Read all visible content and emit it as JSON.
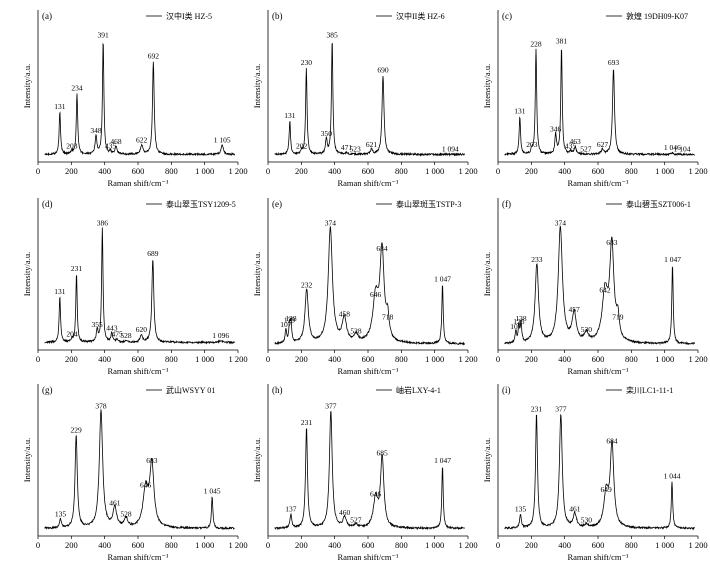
{
  "chart_data": [
    {
      "panel": "(a)",
      "type": "line",
      "legend": "汉中I类 HZ-5",
      "xlabel": "Raman shift/cm⁻¹",
      "ylabel": "Intensity/a.u.",
      "xlim": [
        0,
        1200
      ],
      "xticks": [
        "0",
        "200",
        "400",
        "600",
        "800",
        "1 000",
        "1 200"
      ],
      "baseline": 0.05,
      "peaks": [
        {
          "x": 131,
          "y": 0.33,
          "label": "131",
          "w": 5
        },
        {
          "x": 203,
          "y": 0.07,
          "label": "203",
          "w": 6
        },
        {
          "x": 234,
          "y": 0.45,
          "label": "234",
          "w": 5
        },
        {
          "x": 348,
          "y": 0.17,
          "label": "348",
          "w": 6
        },
        {
          "x": 391,
          "y": 0.8,
          "label": "391",
          "w": 5
        },
        {
          "x": 435,
          "y": 0.07,
          "label": "435",
          "w": 6
        },
        {
          "x": 468,
          "y": 0.1,
          "label": "468",
          "w": 7
        },
        {
          "x": 622,
          "y": 0.11,
          "label": "622",
          "w": 8
        },
        {
          "x": 692,
          "y": 0.66,
          "label": "692",
          "w": 6
        },
        {
          "x": 1105,
          "y": 0.11,
          "label": "1 105",
          "w": 8
        }
      ]
    },
    {
      "panel": "(b)",
      "type": "line",
      "legend": "汉中II类 HZ-6",
      "xlabel": "Raman shift/cm⁻¹",
      "ylabel": "Intensity/a.u.",
      "xlim": [
        0,
        1200
      ],
      "xticks": [
        "0",
        "200",
        "400",
        "600",
        "800",
        "1 000",
        "1 200"
      ],
      "baseline": 0.05,
      "peaks": [
        {
          "x": 131,
          "y": 0.27,
          "label": "131",
          "w": 5
        },
        {
          "x": 202,
          "y": 0.07,
          "label": "202",
          "w": 6
        },
        {
          "x": 230,
          "y": 0.62,
          "label": "230",
          "w": 5
        },
        {
          "x": 350,
          "y": 0.15,
          "label": "350",
          "w": 6
        },
        {
          "x": 385,
          "y": 0.8,
          "label": "385",
          "w": 5
        },
        {
          "x": 471,
          "y": 0.06,
          "label": "471",
          "w": 7
        },
        {
          "x": 523,
          "y": 0.05,
          "label": "523",
          "w": 7
        },
        {
          "x": 621,
          "y": 0.08,
          "label": "621",
          "w": 8
        },
        {
          "x": 690,
          "y": 0.57,
          "label": "690",
          "w": 7
        },
        {
          "x": 1094,
          "y": 0.05,
          "label": "1 094",
          "w": 10
        }
      ]
    },
    {
      "panel": "(c)",
      "type": "line",
      "legend": "敦煌 19DH09-K07",
      "xlabel": "Raman shift/cm⁻¹",
      "ylabel": "Intensity/a.u.",
      "xlim": [
        0,
        1200
      ],
      "xticks": [
        "0",
        "200",
        "400",
        "600",
        "800",
        "1 000",
        "1 200"
      ],
      "baseline": 0.05,
      "peaks": [
        {
          "x": 131,
          "y": 0.3,
          "label": "131",
          "w": 5
        },
        {
          "x": 203,
          "y": 0.08,
          "label": "203",
          "w": 6
        },
        {
          "x": 228,
          "y": 0.74,
          "label": "228",
          "w": 5
        },
        {
          "x": 346,
          "y": 0.18,
          "label": "346",
          "w": 6
        },
        {
          "x": 381,
          "y": 0.76,
          "label": "381",
          "w": 5
        },
        {
          "x": 435,
          "y": 0.07,
          "label": "435",
          "w": 6
        },
        {
          "x": 463,
          "y": 0.1,
          "label": "463",
          "w": 7
        },
        {
          "x": 527,
          "y": 0.05,
          "label": "527",
          "w": 7
        },
        {
          "x": 627,
          "y": 0.08,
          "label": "627",
          "w": 8
        },
        {
          "x": 693,
          "y": 0.62,
          "label": "693",
          "w": 7
        },
        {
          "x": 1046,
          "y": 0.06,
          "label": "1 046",
          "w": 6
        },
        {
          "x": 1104,
          "y": 0.05,
          "label": "1 104",
          "w": 8
        }
      ]
    },
    {
      "panel": "(d)",
      "type": "line",
      "legend": "泰山翠玉TSY1209-5",
      "xlabel": "Raman shift/cm⁻¹",
      "ylabel": "Intensity/a.u.",
      "xlim": [
        0,
        1200
      ],
      "xticks": [
        "0",
        "200",
        "400",
        "600",
        "800",
        "1 000",
        "1 200"
      ],
      "baseline": 0.05,
      "peaks": [
        {
          "x": 131,
          "y": 0.35,
          "label": "131",
          "w": 5
        },
        {
          "x": 204,
          "y": 0.07,
          "label": "204",
          "w": 6
        },
        {
          "x": 231,
          "y": 0.5,
          "label": "231",
          "w": 5
        },
        {
          "x": 355,
          "y": 0.13,
          "label": "355",
          "w": 6
        },
        {
          "x": 386,
          "y": 0.8,
          "label": "386",
          "w": 5
        },
        {
          "x": 443,
          "y": 0.11,
          "label": "443",
          "w": 6
        },
        {
          "x": 475,
          "y": 0.07,
          "label": "475",
          "w": 7
        },
        {
          "x": 528,
          "y": 0.06,
          "label": "528",
          "w": 7
        },
        {
          "x": 620,
          "y": 0.1,
          "label": "620",
          "w": 8
        },
        {
          "x": 689,
          "y": 0.6,
          "label": "689",
          "w": 7
        },
        {
          "x": 1096,
          "y": 0.06,
          "label": "1 096",
          "w": 10
        }
      ]
    },
    {
      "panel": "(e)",
      "type": "line",
      "legend": "泰山翠斑玉TSTP-3",
      "xlabel": "Raman shift/cm⁻¹",
      "ylabel": "Intensity/a.u.",
      "xlim": [
        0,
        1200
      ],
      "xticks": [
        "0",
        "200",
        "400",
        "600",
        "800",
        "1 000",
        "1 200"
      ],
      "baseline": 0.04,
      "peaks": [
        {
          "x": 107,
          "y": 0.13,
          "label": "107",
          "w": 5
        },
        {
          "x": 129,
          "y": 0.16,
          "label": "129",
          "w": 5
        },
        {
          "x": 138,
          "y": 0.17,
          "label": "138",
          "w": 5
        },
        {
          "x": 232,
          "y": 0.39,
          "label": "232",
          "w": 12
        },
        {
          "x": 374,
          "y": 0.8,
          "label": "374",
          "w": 15
        },
        {
          "x": 458,
          "y": 0.2,
          "label": "458",
          "w": 15
        },
        {
          "x": 528,
          "y": 0.09,
          "label": "528",
          "w": 14
        },
        {
          "x": 646,
          "y": 0.33,
          "label": "646",
          "w": 20
        },
        {
          "x": 684,
          "y": 0.63,
          "label": "684",
          "w": 15
        },
        {
          "x": 718,
          "y": 0.18,
          "label": "718",
          "w": 10
        },
        {
          "x": 1047,
          "y": 0.43,
          "label": "1 047",
          "w": 5
        }
      ]
    },
    {
      "panel": "(f)",
      "type": "line",
      "legend": "泰山碧玉SZT006-1",
      "xlabel": "Raman shift/cm⁻¹",
      "ylabel": "Intensity/a.u.",
      "xlim": [
        0,
        1200
      ],
      "xticks": [
        "0",
        "200",
        "400",
        "600",
        "800",
        "1 000",
        "1 200"
      ],
      "baseline": 0.04,
      "peaks": [
        {
          "x": 107,
          "y": 0.12,
          "label": "107",
          "w": 5
        },
        {
          "x": 125,
          "y": 0.15,
          "label": "125",
          "w": 5
        },
        {
          "x": 138,
          "y": 0.17,
          "label": "138",
          "w": 5
        },
        {
          "x": 233,
          "y": 0.56,
          "label": "233",
          "w": 12
        },
        {
          "x": 374,
          "y": 0.8,
          "label": "374",
          "w": 15
        },
        {
          "x": 457,
          "y": 0.23,
          "label": "457",
          "w": 15
        },
        {
          "x": 530,
          "y": 0.1,
          "label": "530",
          "w": 14
        },
        {
          "x": 642,
          "y": 0.36,
          "label": "642",
          "w": 20
        },
        {
          "x": 683,
          "y": 0.67,
          "label": "683",
          "w": 15
        },
        {
          "x": 719,
          "y": 0.18,
          "label": "719",
          "w": 10
        },
        {
          "x": 1047,
          "y": 0.56,
          "label": "1 047",
          "w": 5
        }
      ]
    },
    {
      "panel": "(g)",
      "type": "line",
      "legend": "武山WSYY 01",
      "xlabel": "Raman shift/cm⁻¹",
      "ylabel": "Intensity/a.u.",
      "xlim": [
        0,
        1200
      ],
      "xticks": [
        "0",
        "200",
        "400",
        "600",
        "800",
        "1 000",
        "1 200"
      ],
      "baseline": 0.05,
      "peaks": [
        {
          "x": 135,
          "y": 0.11,
          "label": "135",
          "w": 6
        },
        {
          "x": 229,
          "y": 0.66,
          "label": "229",
          "w": 8
        },
        {
          "x": 378,
          "y": 0.82,
          "label": "378",
          "w": 12
        },
        {
          "x": 461,
          "y": 0.18,
          "label": "461",
          "w": 13
        },
        {
          "x": 528,
          "y": 0.11,
          "label": "528",
          "w": 12
        },
        {
          "x": 646,
          "y": 0.3,
          "label": "646",
          "w": 18
        },
        {
          "x": 683,
          "y": 0.46,
          "label": "683",
          "w": 15
        },
        {
          "x": 1045,
          "y": 0.26,
          "label": "1 045",
          "w": 5
        }
      ]
    },
    {
      "panel": "(h)",
      "type": "line",
      "legend": "岫岩LXY-4-1",
      "xlabel": "Raman shift/cm⁻¹",
      "ylabel": "Intensity/a.u.",
      "xlim": [
        0,
        1200
      ],
      "xticks": [
        "0",
        "200",
        "400",
        "600",
        "800",
        "1 000",
        "1 200"
      ],
      "baseline": 0.05,
      "peaks": [
        {
          "x": 137,
          "y": 0.14,
          "label": "137",
          "w": 6
        },
        {
          "x": 231,
          "y": 0.71,
          "label": "231",
          "w": 7
        },
        {
          "x": 377,
          "y": 0.82,
          "label": "377",
          "w": 10
        },
        {
          "x": 460,
          "y": 0.12,
          "label": "460",
          "w": 12
        },
        {
          "x": 527,
          "y": 0.07,
          "label": "527",
          "w": 12
        },
        {
          "x": 646,
          "y": 0.24,
          "label": "646",
          "w": 16
        },
        {
          "x": 685,
          "y": 0.51,
          "label": "685",
          "w": 12
        },
        {
          "x": 1047,
          "y": 0.46,
          "label": "1 047",
          "w": 5
        }
      ]
    },
    {
      "panel": "(i)",
      "type": "line",
      "legend": "栾川LC1-11-1",
      "xlabel": "Raman shift/cm⁻¹",
      "ylabel": "Intensity/a.u.",
      "xlim": [
        0,
        1200
      ],
      "xticks": [
        "0",
        "200",
        "400",
        "600",
        "800",
        "1 000",
        "1 200"
      ],
      "baseline": 0.05,
      "peaks": [
        {
          "x": 135,
          "y": 0.14,
          "label": "135",
          "w": 6
        },
        {
          "x": 231,
          "y": 0.8,
          "label": "231",
          "w": 7
        },
        {
          "x": 377,
          "y": 0.8,
          "label": "377",
          "w": 10
        },
        {
          "x": 461,
          "y": 0.14,
          "label": "461",
          "w": 12
        },
        {
          "x": 530,
          "y": 0.07,
          "label": "530",
          "w": 12
        },
        {
          "x": 649,
          "y": 0.27,
          "label": "649",
          "w": 16
        },
        {
          "x": 684,
          "y": 0.59,
          "label": "684",
          "w": 13
        },
        {
          "x": 1044,
          "y": 0.36,
          "label": "1 044",
          "w": 5
        }
      ]
    }
  ]
}
